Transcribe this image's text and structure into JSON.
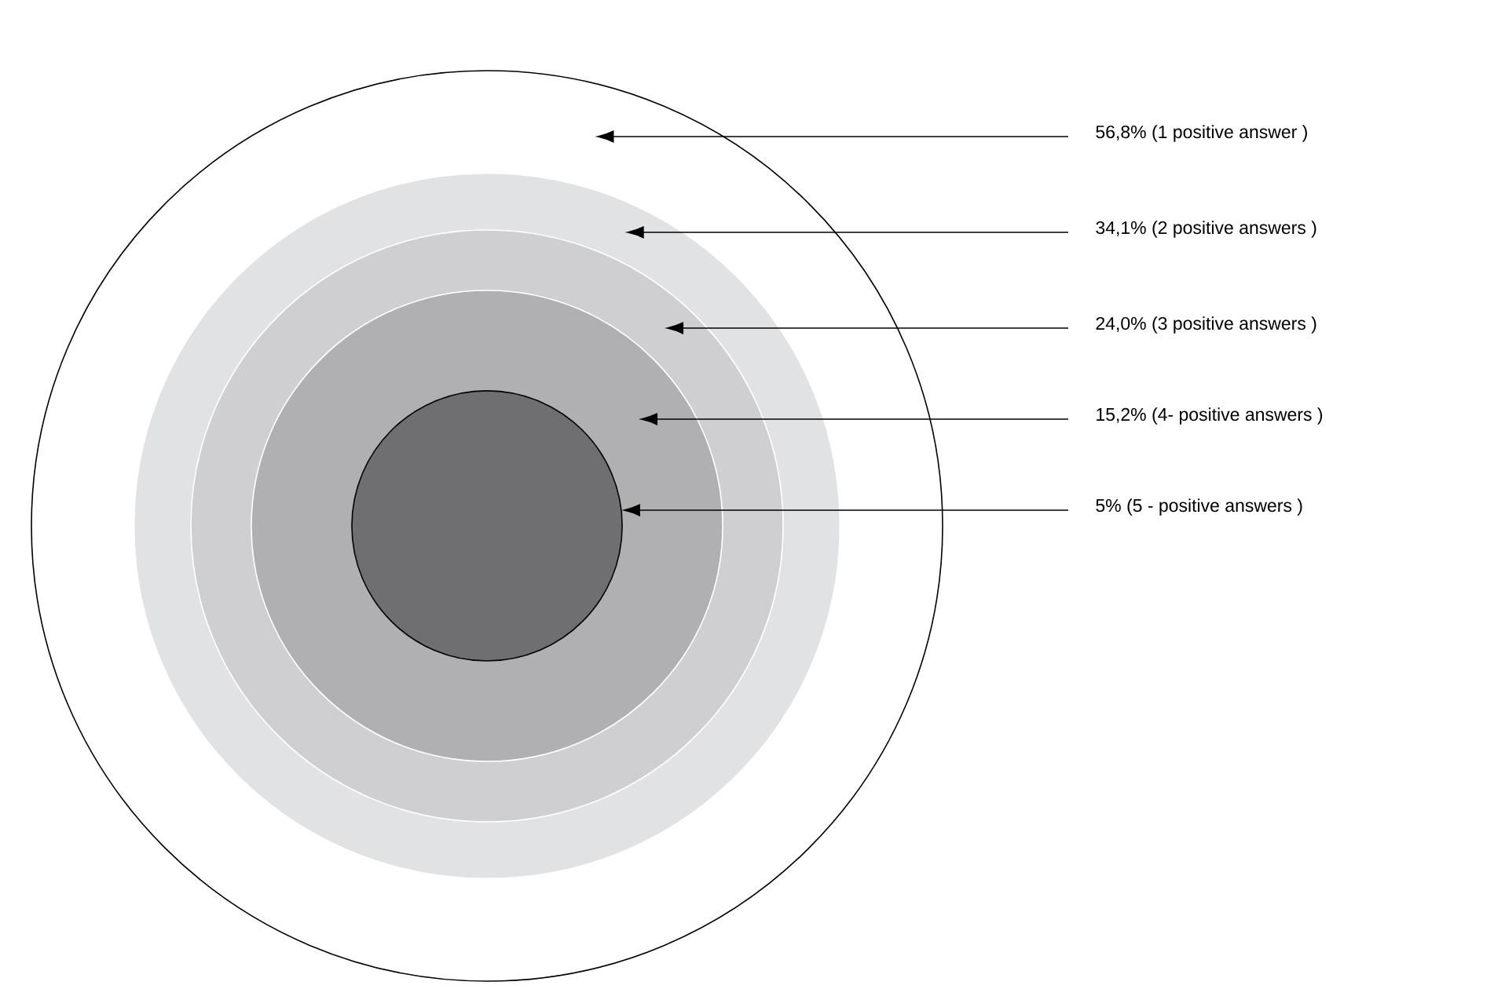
{
  "chart_data": {
    "type": "other",
    "categories": [
      "(1  positive answer )",
      "(2  positive answers )",
      "(3  positive answers )",
      "(4-  positive answers )",
      "(5 -  positive answers )"
    ],
    "values": [
      56.8,
      34.1,
      24.0,
      15.2,
      5
    ],
    "value_labels": [
      "56,8%",
      "34,1%",
      "24,0%",
      "15,2%",
      "5%"
    ],
    "colors": [
      "#ffffff",
      "#e1e2e4",
      "#cfcfd1",
      "#b0b0b2",
      "#6f6f71"
    ]
  }
}
